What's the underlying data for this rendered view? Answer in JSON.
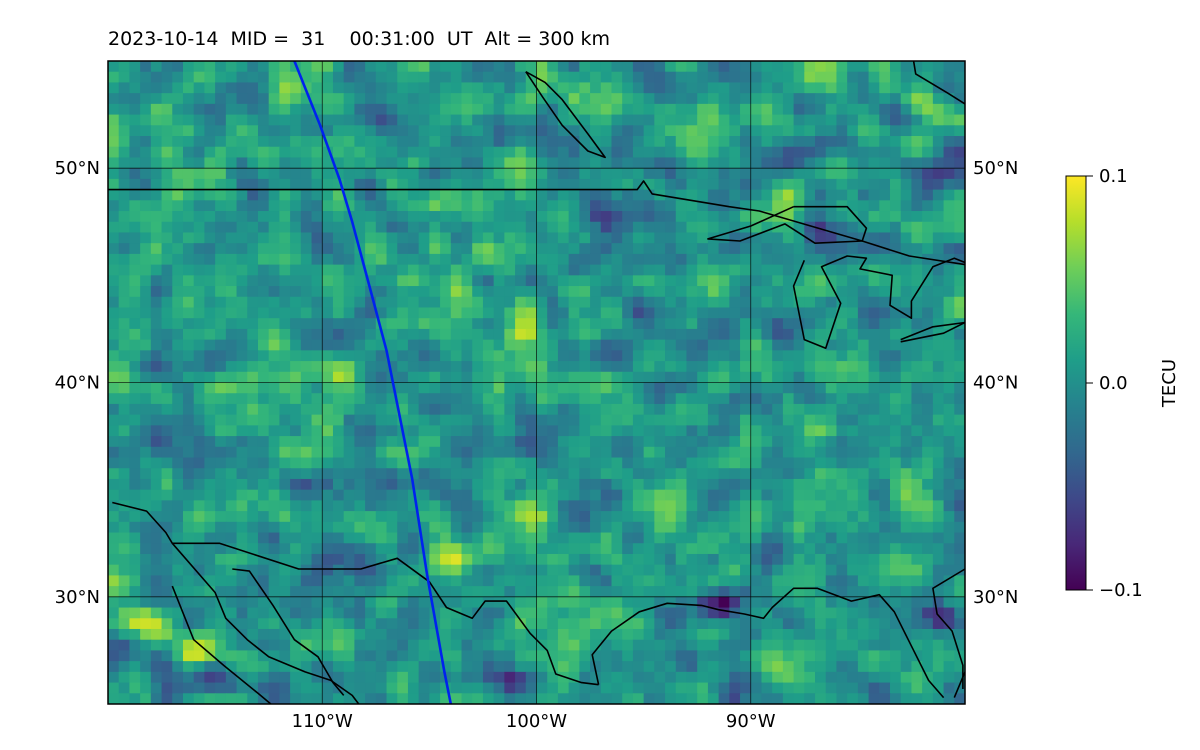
{
  "title": "2023-10-14  MID =  31    00:31:00  UT  Alt = 300 km",
  "map": {
    "lon_range": [
      -120,
      -80
    ],
    "lat_range": [
      25,
      55
    ],
    "lat_ticks": [
      {
        "value": 30,
        "label": "30°N"
      },
      {
        "value": 40,
        "label": "40°N"
      },
      {
        "value": 50,
        "label": "50°N"
      }
    ],
    "lon_ticks": [
      {
        "value": -110,
        "label": "110°W"
      },
      {
        "value": -100,
        "label": "100°W"
      },
      {
        "value": -90,
        "label": "90°W"
      }
    ],
    "grid": true,
    "field_hotspots": [
      {
        "lon": -118.5,
        "lat": 29.0,
        "value": 0.1
      },
      {
        "lon": -115.5,
        "lat": 27.5,
        "value": 0.09
      },
      {
        "lon": -117.5,
        "lat": 39.5,
        "value": 0.05
      },
      {
        "lon": -109.5,
        "lat": 40.5,
        "value": 0.07
      },
      {
        "lon": -100.5,
        "lat": 42.3,
        "value": 0.07
      },
      {
        "lon": -99.5,
        "lat": 39.2,
        "value": 0.06
      },
      {
        "lon": -96.5,
        "lat": 40.0,
        "value": 0.07
      },
      {
        "lon": -101.5,
        "lat": 36.3,
        "value": 0.06
      },
      {
        "lon": -102.0,
        "lat": 34.5,
        "value": 0.06
      },
      {
        "lon": -100.5,
        "lat": 33.8,
        "value": 0.07
      },
      {
        "lon": -104.0,
        "lat": 31.7,
        "value": 0.06
      },
      {
        "lon": -82.0,
        "lat": 53.0,
        "value": 0.07
      },
      {
        "lon": -100.5,
        "lat": 37.0,
        "value": -0.08
      },
      {
        "lon": -101.0,
        "lat": 26.2,
        "value": -0.08
      },
      {
        "lon": -114.8,
        "lat": 26.0,
        "value": -0.09
      },
      {
        "lon": -91.5,
        "lat": 29.7,
        "value": -0.07
      },
      {
        "lon": -81.0,
        "lat": 29.0,
        "value": -0.09
      },
      {
        "lon": -86.5,
        "lat": 47.0,
        "value": -0.06
      },
      {
        "lon": -96.5,
        "lat": 47.5,
        "value": -0.06
      }
    ],
    "track": {
      "color": "#0022ee",
      "points": [
        [
          -111.3,
          55
        ],
        [
          -110.1,
          52
        ],
        [
          -109.2,
          49.5
        ],
        [
          -108.6,
          47.5
        ],
        [
          -107.8,
          44.5
        ],
        [
          -107.0,
          41.5
        ],
        [
          -106.5,
          39
        ],
        [
          -105.8,
          35.5
        ],
        [
          -105.1,
          31
        ],
        [
          -104.3,
          26.5
        ],
        [
          -104.0,
          25
        ]
      ]
    },
    "coastlines": [
      [
        [
          -120,
          49
        ],
        [
          -95.3,
          49
        ],
        [
          -95.0,
          49.4
        ],
        [
          -94.6,
          48.8
        ],
        [
          -91,
          48.2
        ],
        [
          -89.6,
          48.0
        ],
        [
          -84.8,
          46.6
        ],
        [
          -82.6,
          45.9
        ],
        [
          -80,
          45.5
        ]
      ],
      [
        [
          -88.0,
          48.2
        ],
        [
          -85.5,
          48.2
        ],
        [
          -84.6,
          47.2
        ],
        [
          -84.8,
          46.6
        ],
        [
          -87.0,
          46.5
        ],
        [
          -88.4,
          47.4
        ],
        [
          -90.5,
          46.6
        ],
        [
          -92.0,
          46.7
        ],
        [
          -90.0,
          47.3
        ],
        [
          -88.0,
          48.2
        ]
      ],
      [
        [
          -87.5,
          45.7
        ],
        [
          -88.0,
          44.5
        ],
        [
          -87.5,
          42.0
        ],
        [
          -86.5,
          41.6
        ],
        [
          -85.8,
          43.7
        ],
        [
          -86.7,
          45.4
        ],
        [
          -85.5,
          45.9
        ],
        [
          -84.6,
          45.8
        ],
        [
          -84.9,
          45.3
        ],
        [
          -83.4,
          45.0
        ],
        [
          -83.5,
          43.6
        ],
        [
          -82.5,
          43.0
        ],
        [
          -82.5,
          43.8
        ],
        [
          -81.5,
          45.4
        ],
        [
          -80.5,
          45.8
        ],
        [
          -80,
          45.6
        ]
      ],
      [
        [
          -83.0,
          42.0
        ],
        [
          -81.5,
          42.6
        ],
        [
          -80,
          42.8
        ]
      ],
      [
        [
          -83.0,
          41.9
        ],
        [
          -81.0,
          42.3
        ],
        [
          -80,
          42.8
        ]
      ],
      [
        [
          -119.8,
          34.4
        ],
        [
          -118.2,
          34.0
        ],
        [
          -117.3,
          33.0
        ],
        [
          -117.0,
          32.5
        ],
        [
          -115.0,
          30.2
        ],
        [
          -114.5,
          29.0
        ],
        [
          -113.5,
          28.0
        ],
        [
          -112.5,
          27.2
        ],
        [
          -110.8,
          26.5
        ],
        [
          -109.6,
          26.1
        ],
        [
          -108.6,
          25.4
        ],
        [
          -108.3,
          25.0
        ]
      ],
      [
        [
          -117.0,
          32.5
        ],
        [
          -114.8,
          32.5
        ],
        [
          -111.1,
          31.3
        ],
        [
          -108.2,
          31.3
        ],
        [
          -106.5,
          31.8
        ],
        [
          -105.0,
          30.7
        ],
        [
          -104.2,
          29.5
        ],
        [
          -103.0,
          29.0
        ],
        [
          -102.4,
          29.8
        ],
        [
          -101.4,
          29.8
        ],
        [
          -100.3,
          28.3
        ],
        [
          -99.5,
          27.5
        ],
        [
          -99.1,
          26.4
        ],
        [
          -97.9,
          26.0
        ],
        [
          -97.1,
          25.9
        ]
      ],
      [
        [
          -117.0,
          30.5
        ],
        [
          -116.0,
          28.0
        ],
        [
          -114.6,
          26.8
        ],
        [
          -113.0,
          25.5
        ],
        [
          -112.4,
          25.0
        ]
      ],
      [
        [
          -114.2,
          31.3
        ],
        [
          -113.4,
          31.2
        ],
        [
          -112.3,
          29.6
        ],
        [
          -111.3,
          28.0
        ],
        [
          -110.2,
          27.2
        ],
        [
          -109.5,
          26.0
        ],
        [
          -109.0,
          25.4
        ]
      ],
      [
        [
          -97.1,
          25.9
        ],
        [
          -97.4,
          27.3
        ],
        [
          -96.5,
          28.4
        ],
        [
          -95.2,
          29.3
        ],
        [
          -93.9,
          29.7
        ],
        [
          -92.3,
          29.6
        ],
        [
          -91.5,
          29.4
        ],
        [
          -90.3,
          29.2
        ],
        [
          -89.4,
          29.0
        ],
        [
          -89.0,
          29.5
        ],
        [
          -88.0,
          30.4
        ],
        [
          -86.9,
          30.4
        ],
        [
          -85.3,
          29.8
        ],
        [
          -84.0,
          30.1
        ],
        [
          -83.3,
          29.3
        ],
        [
          -82.6,
          27.9
        ],
        [
          -81.7,
          26.1
        ],
        [
          -81.0,
          25.3
        ]
      ],
      [
        [
          -80,
          31.3
        ],
        [
          -81.5,
          30.4
        ],
        [
          -81.3,
          29.2
        ],
        [
          -80.6,
          28.4
        ],
        [
          -80.1,
          26.8
        ],
        [
          -80.1,
          25.7
        ]
      ],
      [
        [
          -80,
          26.5
        ],
        [
          -80.5,
          25.3
        ]
      ],
      [
        [
          -100.5,
          54.5
        ],
        [
          -99.6,
          54.0
        ],
        [
          -98.8,
          53.2
        ],
        [
          -97.6,
          51.6
        ],
        [
          -96.8,
          50.5
        ],
        [
          -97.6,
          50.8
        ],
        [
          -98.8,
          52.0
        ],
        [
          -99.7,
          53.3
        ],
        [
          -100.5,
          54.5
        ]
      ],
      [
        [
          -80,
          53.0
        ],
        [
          -80.8,
          53.5
        ],
        [
          -82.3,
          54.4
        ],
        [
          -82.4,
          55
        ]
      ]
    ]
  },
  "colorbar": {
    "label": "TECU",
    "min": -0.1,
    "max": 0.1,
    "ticks": [
      {
        "value": 0.1,
        "label": "0.1"
      },
      {
        "value": 0.0,
        "label": "0.0"
      },
      {
        "value": -0.1,
        "label": "−0.1"
      }
    ],
    "colormap": [
      "#440154",
      "#482878",
      "#3e4989",
      "#31688e",
      "#26828e",
      "#1f9e89",
      "#35b779",
      "#6ece58",
      "#b5de2b",
      "#fde725"
    ]
  }
}
